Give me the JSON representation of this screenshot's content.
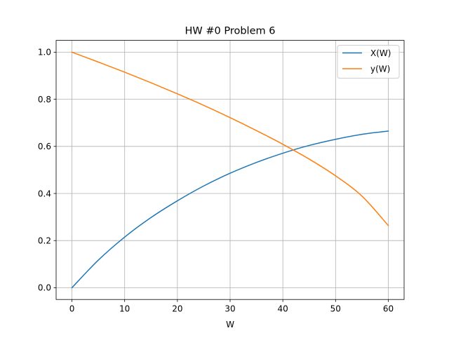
{
  "chart_data": {
    "type": "line",
    "title": "HW #0 Problem 6",
    "xlabel": "W",
    "ylabel": "",
    "xlim": [
      -3,
      63
    ],
    "ylim": [
      -0.05,
      1.05
    ],
    "xticks": [
      0,
      10,
      20,
      30,
      40,
      50,
      60
    ],
    "yticks": [
      0.0,
      0.2,
      0.4,
      0.6,
      0.8,
      1.0
    ],
    "xtick_labels": [
      "0",
      "10",
      "20",
      "30",
      "40",
      "50",
      "60"
    ],
    "ytick_labels": [
      "0.0",
      "0.2",
      "0.4",
      "0.6",
      "0.8",
      "1.0"
    ],
    "grid": true,
    "legend": {
      "location": "upper right"
    },
    "x": [
      0,
      5,
      10,
      15,
      20,
      25,
      30,
      35,
      40,
      45,
      50,
      55,
      60
    ],
    "series": [
      {
        "name": "X(W)",
        "color": "#1f77b4",
        "values": [
          0.0,
          0.117,
          0.215,
          0.298,
          0.369,
          0.432,
          0.486,
          0.532,
          0.571,
          0.604,
          0.63,
          0.651,
          0.665
        ]
      },
      {
        "name": "y(W)",
        "color": "#ff7f0e",
        "values": [
          1.0,
          0.958,
          0.915,
          0.87,
          0.823,
          0.774,
          0.722,
          0.667,
          0.609,
          0.546,
          0.475,
          0.389,
          0.264
        ]
      }
    ]
  }
}
